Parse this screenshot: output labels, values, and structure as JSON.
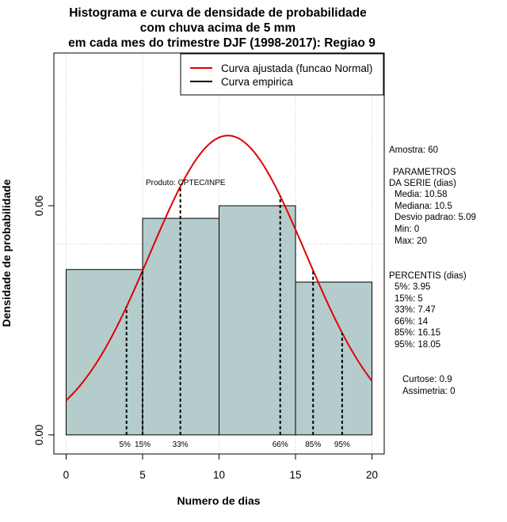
{
  "chart_data": {
    "type": "bar",
    "title": [
      "Histograma e curva de densidade de probabilidade",
      "com chuva acima de 5 mm",
      "em cada mes do trimestre DJF (1998-2017): Regiao 9"
    ],
    "xlabel": "Numero de dias",
    "ylabel": "Densidade de probabilidade",
    "xlim": [
      -0.8,
      20.8
    ],
    "ylim": [
      -0.005,
      0.1
    ],
    "x_ticks": [
      0,
      5,
      10,
      15,
      20
    ],
    "y_ticks": [
      0.0,
      0.06
    ],
    "y_tick_labels": [
      "0.00",
      "0.06"
    ],
    "grid": true,
    "grid_x": [
      0,
      5,
      10,
      15,
      20
    ],
    "grid_y": [
      0.05,
      0.1
    ],
    "bar_color": "#b4cccc",
    "bins": [
      {
        "x0": 0,
        "x1": 5,
        "density": 0.0433
      },
      {
        "x0": 5,
        "x1": 10,
        "density": 0.0567
      },
      {
        "x0": 10,
        "x1": 15,
        "density": 0.06
      },
      {
        "x0": 15,
        "x1": 20,
        "density": 0.04
      }
    ],
    "normal_curve": {
      "mean": 10.58,
      "sd": 5.09,
      "x_range": [
        0,
        20
      ],
      "color": "#e00000"
    },
    "percentile_lines": [
      {
        "label": "5%",
        "x": 3.95
      },
      {
        "label": "15%",
        "x": 5
      },
      {
        "label": "33%",
        "x": 7.47
      },
      {
        "label": "66%",
        "x": 14
      },
      {
        "label": "85%",
        "x": 16.15
      },
      {
        "label": "95%",
        "x": 18.05
      }
    ],
    "legend": {
      "placement": "top-right",
      "entries": [
        {
          "label": "Curva ajustada (funcao Normal)",
          "color": "#e00000"
        },
        {
          "label": "Curva empirica",
          "color": "#000000"
        }
      ]
    },
    "annotation": "Produto: CPTEC/INPE"
  },
  "side_stats": {
    "amostra": "Amostra: 60",
    "param_header_1": "PARAMETROS",
    "param_header_2": "DA SERIE (dias)",
    "media": "Media: 10.58",
    "mediana": "Mediana: 10.5",
    "desvio": "Desvio padrao: 5.09",
    "min": "Min: 0",
    "max": "Max: 20",
    "percentis_header": "PERCENTIS (dias)",
    "p5": "5%: 3.95",
    "p15": "15%: 5",
    "p33": "33%: 7.47",
    "p66": "66%: 14",
    "p85": "85%: 16.15",
    "p95": "95%: 18.05",
    "curtose": "Curtose: 0.9",
    "assimetria": "Assimetria: 0"
  }
}
